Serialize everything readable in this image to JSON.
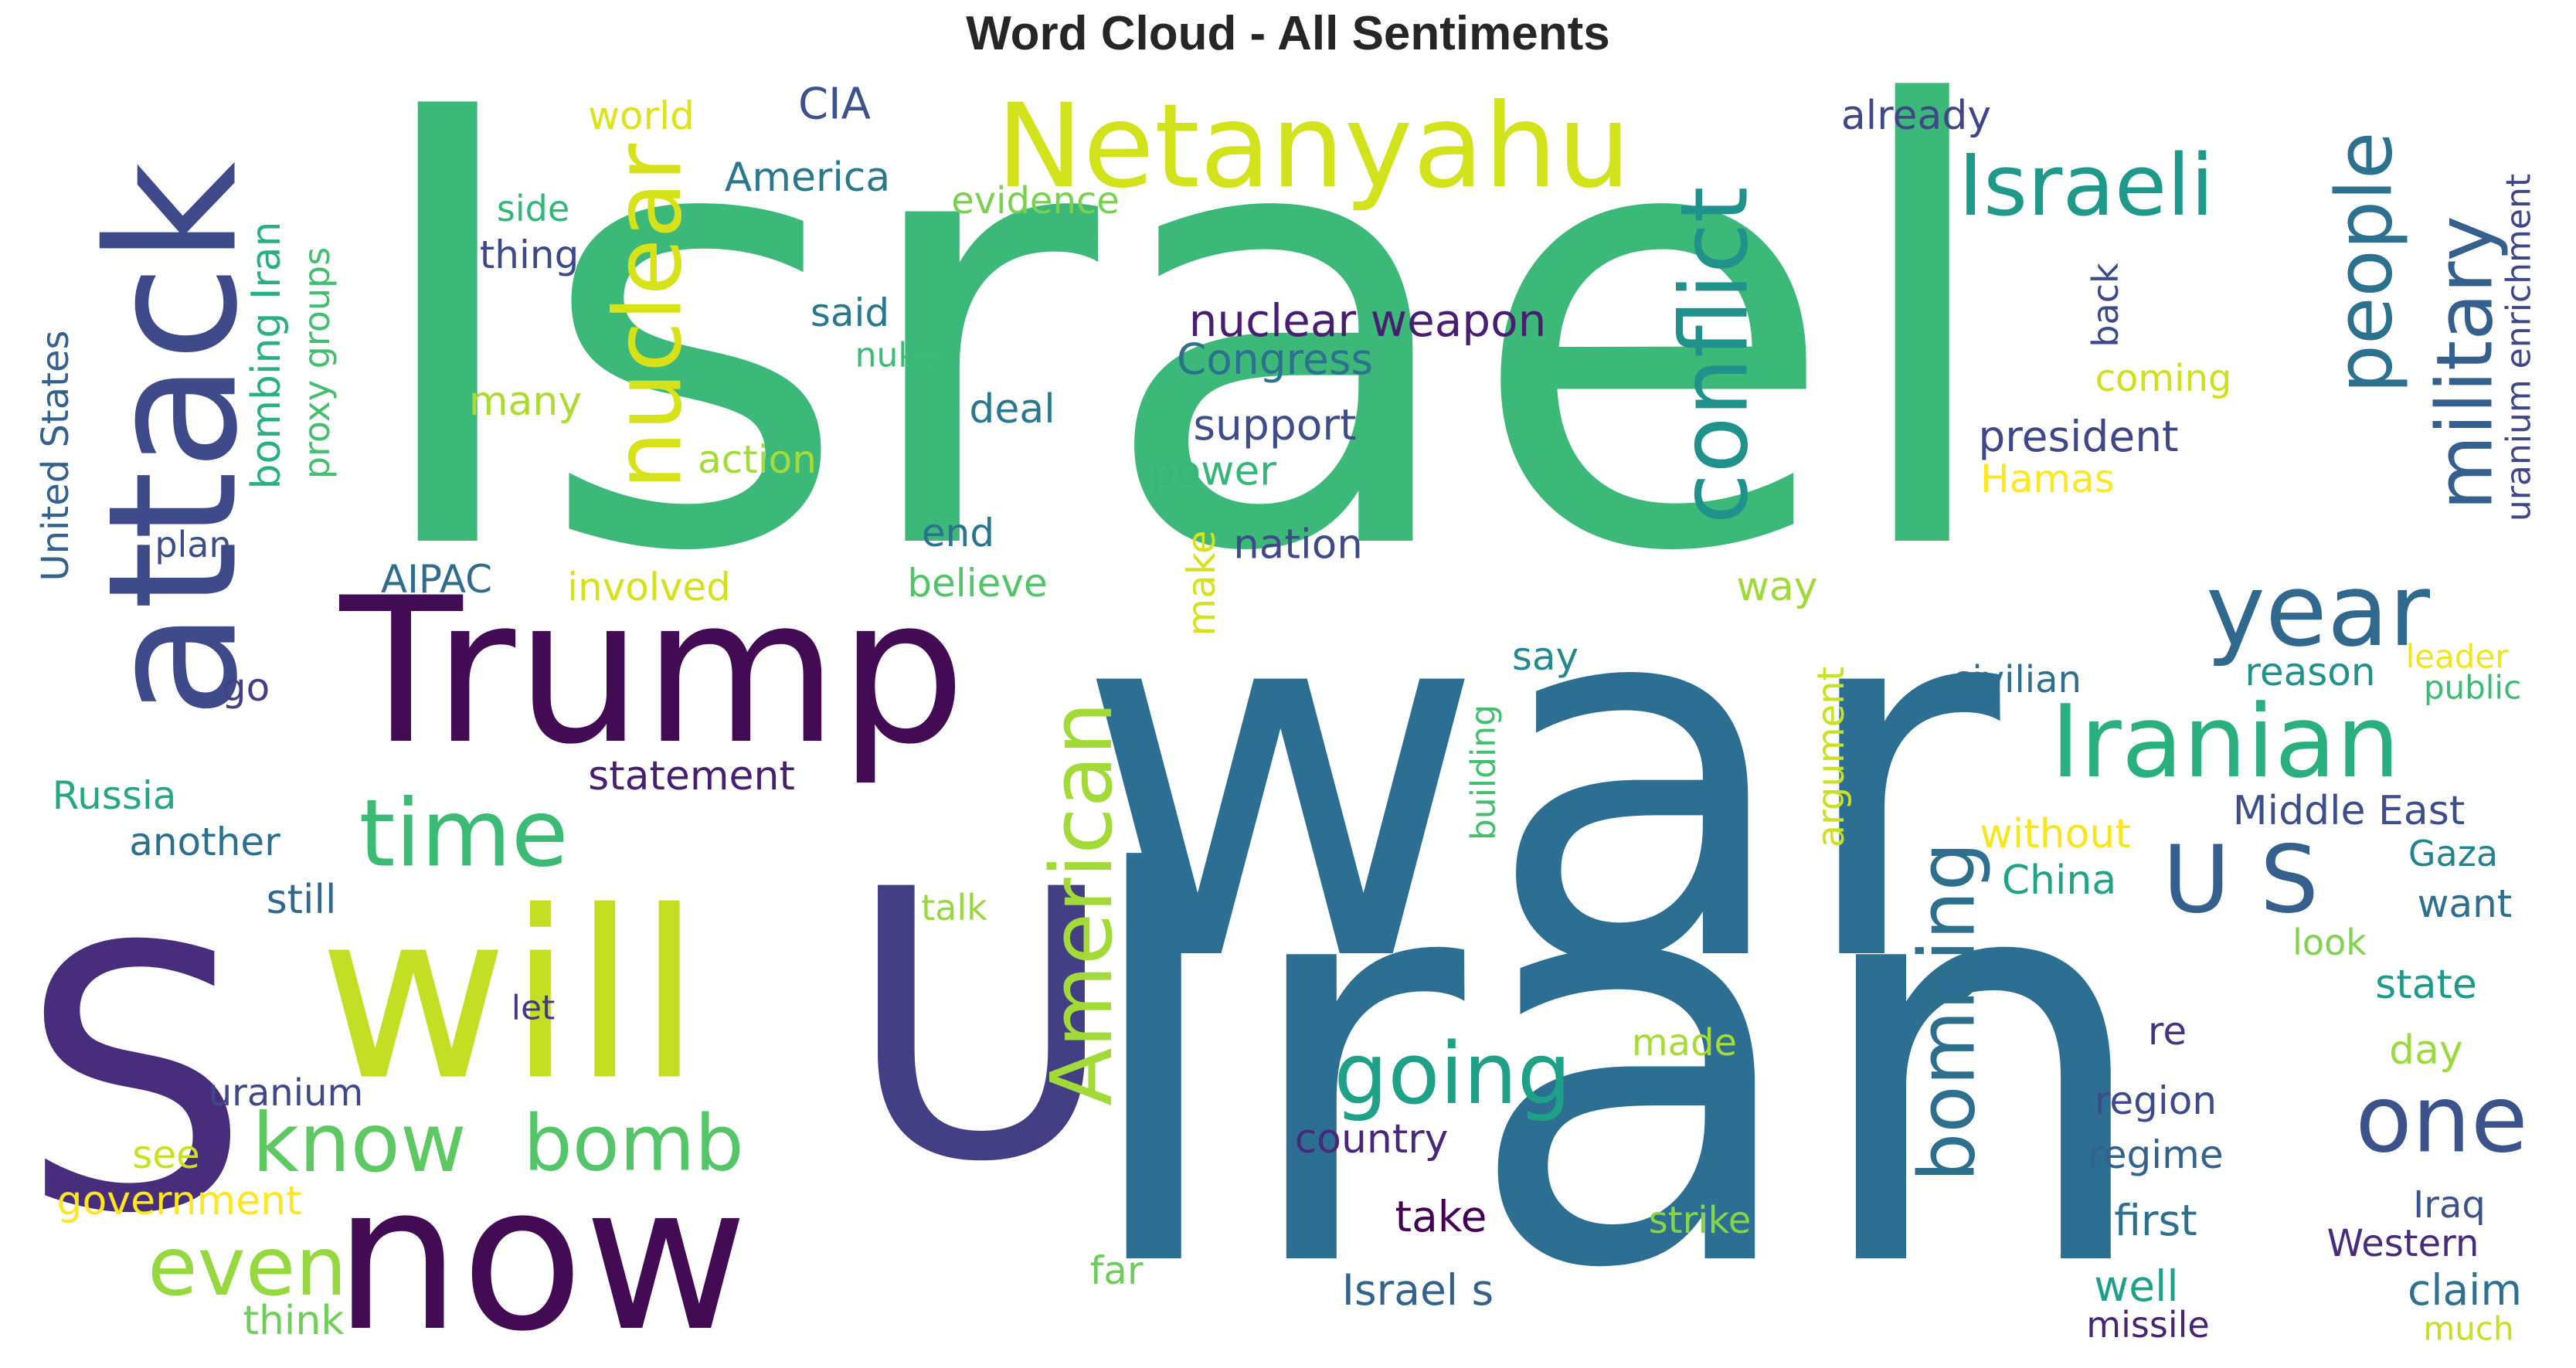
{
  "title": "Word Cloud - All Sentiments",
  "word_cloud": {
    "words": [
      {
        "text": "Israel",
        "orientation": "horizontal",
        "color": "#3cb878"
      },
      {
        "text": "war",
        "orientation": "horizontal",
        "color": "#2c6f92"
      },
      {
        "text": "Iran",
        "orientation": "horizontal",
        "color": "#2c6f92"
      },
      {
        "text": "Trump",
        "orientation": "horizontal",
        "color": "#440b55"
      },
      {
        "text": "attack",
        "orientation": "vertical",
        "color": "#3e4a89"
      },
      {
        "text": "S",
        "orientation": "horizontal",
        "color": "#472d7b"
      },
      {
        "text": "will",
        "orientation": "horizontal",
        "color": "#c2df23"
      },
      {
        "text": "U",
        "orientation": "horizontal",
        "color": "#423f85"
      },
      {
        "text": "now",
        "orientation": "horizontal",
        "color": "#440b55"
      },
      {
        "text": "Netanyahu",
        "orientation": "horizontal",
        "color": "#d2e21b"
      },
      {
        "text": "nuclear",
        "orientation": "vertical",
        "color": "#d8e219"
      },
      {
        "text": "conflict",
        "orientation": "vertical",
        "color": "#21918c"
      },
      {
        "text": "Israeli",
        "orientation": "horizontal",
        "color": "#1f998a"
      },
      {
        "text": "people",
        "orientation": "vertical",
        "color": "#2c728e"
      },
      {
        "text": "military",
        "orientation": "vertical",
        "color": "#355f8d"
      },
      {
        "text": "year",
        "orientation": "horizontal",
        "color": "#31688e"
      },
      {
        "text": "Iranian",
        "orientation": "horizontal",
        "color": "#2ab07f"
      },
      {
        "text": "U S",
        "orientation": "horizontal",
        "color": "#355f8d"
      },
      {
        "text": "American",
        "orientation": "vertical",
        "color": "#a2da37"
      },
      {
        "text": "time",
        "orientation": "horizontal",
        "color": "#3bbb75"
      },
      {
        "text": "know",
        "orientation": "horizontal",
        "color": "#5ec962"
      },
      {
        "text": "bomb",
        "orientation": "horizontal",
        "color": "#54c568"
      },
      {
        "text": "even",
        "orientation": "horizontal",
        "color": "#95d840"
      },
      {
        "text": "going",
        "orientation": "horizontal",
        "color": "#1fa187"
      },
      {
        "text": "bombing",
        "orientation": "vertical",
        "color": "#2d708e"
      },
      {
        "text": "one",
        "orientation": "horizontal",
        "color": "#3b528b"
      },
      {
        "text": "nuclear weapon",
        "orientation": "horizontal",
        "color": "#481f70"
      },
      {
        "text": "Congress",
        "orientation": "horizontal",
        "color": "#2c728e"
      },
      {
        "text": "support",
        "orientation": "horizontal",
        "color": "#3e4c8a"
      },
      {
        "text": "power",
        "orientation": "horizontal",
        "color": "#35b779"
      },
      {
        "text": "nation",
        "orientation": "horizontal",
        "color": "#3e4a89"
      },
      {
        "text": "president",
        "orientation": "horizontal",
        "color": "#3f4788"
      },
      {
        "text": "Hamas",
        "orientation": "horizontal",
        "color": "#fde725"
      },
      {
        "text": "already",
        "orientation": "horizontal",
        "color": "#3f4788"
      },
      {
        "text": "CIA",
        "orientation": "horizontal",
        "color": "#3b528b"
      },
      {
        "text": "world",
        "orientation": "horizontal",
        "color": "#dde318"
      },
      {
        "text": "America",
        "orientation": "horizontal",
        "color": "#2a788e"
      },
      {
        "text": "evidence",
        "orientation": "horizontal",
        "color": "#7ad151"
      },
      {
        "text": "side",
        "orientation": "horizontal",
        "color": "#32b67a"
      },
      {
        "text": "thing",
        "orientation": "horizontal",
        "color": "#3e4989"
      },
      {
        "text": "said",
        "orientation": "horizontal",
        "color": "#2a788e"
      },
      {
        "text": "nuke",
        "orientation": "horizontal",
        "color": "#3bbb75"
      },
      {
        "text": "many",
        "orientation": "horizontal",
        "color": "#addc30"
      },
      {
        "text": "deal",
        "orientation": "horizontal",
        "color": "#2a788e"
      },
      {
        "text": "action",
        "orientation": "horizontal",
        "color": "#a5db36"
      },
      {
        "text": "end",
        "orientation": "horizontal",
        "color": "#2b748e"
      },
      {
        "text": "believe",
        "orientation": "horizontal",
        "color": "#52c569"
      },
      {
        "text": "involved",
        "orientation": "horizontal",
        "color": "#d5e21a"
      },
      {
        "text": "AIPAC",
        "orientation": "horizontal",
        "color": "#2f6c8e"
      },
      {
        "text": "plan",
        "orientation": "horizontal",
        "color": "#3d4d8a"
      },
      {
        "text": "bombing Iran",
        "orientation": "vertical",
        "color": "#2ab07f"
      },
      {
        "text": "proxy groups",
        "orientation": "vertical",
        "color": "#44bf70"
      },
      {
        "text": "United States",
        "orientation": "vertical",
        "color": "#34618d"
      },
      {
        "text": "go",
        "orientation": "horizontal",
        "color": "#433e85"
      },
      {
        "text": "statement",
        "orientation": "horizontal",
        "color": "#481f70"
      },
      {
        "text": "Russia",
        "orientation": "horizontal",
        "color": "#26a784"
      },
      {
        "text": "another",
        "orientation": "horizontal",
        "color": "#2d708e"
      },
      {
        "text": "still",
        "orientation": "horizontal",
        "color": "#31688e"
      },
      {
        "text": "uranium",
        "orientation": "horizontal",
        "color": "#3f4889"
      },
      {
        "text": "see",
        "orientation": "horizontal",
        "color": "#cae11f"
      },
      {
        "text": "government",
        "orientation": "horizontal",
        "color": "#fde725"
      },
      {
        "text": "think",
        "orientation": "horizontal",
        "color": "#6ece58"
      },
      {
        "text": "let",
        "orientation": "horizontal",
        "color": "#443983"
      },
      {
        "text": "talk",
        "orientation": "horizontal",
        "color": "#98d83e"
      },
      {
        "text": "make",
        "orientation": "vertical",
        "color": "#d8e219"
      },
      {
        "text": "country",
        "orientation": "horizontal",
        "color": "#482878"
      },
      {
        "text": "take",
        "orientation": "horizontal",
        "color": "#440154"
      },
      {
        "text": "Israel s",
        "orientation": "horizontal",
        "color": "#33638d"
      },
      {
        "text": "far",
        "orientation": "horizontal",
        "color": "#6ccd5a"
      },
      {
        "text": "made",
        "orientation": "horizontal",
        "color": "#a8db34"
      },
      {
        "text": "strike",
        "orientation": "horizontal",
        "color": "#86d549"
      },
      {
        "text": "say",
        "orientation": "horizontal",
        "color": "#23898e"
      },
      {
        "text": "building",
        "orientation": "vertical",
        "color": "#44bf70"
      },
      {
        "text": "argument",
        "orientation": "vertical",
        "color": "#cae11f"
      },
      {
        "text": "way",
        "orientation": "horizontal",
        "color": "#a0da39"
      },
      {
        "text": "civilian",
        "orientation": "horizontal",
        "color": "#2e6e8e"
      },
      {
        "text": "reason",
        "orientation": "horizontal",
        "color": "#20928c"
      },
      {
        "text": "without",
        "orientation": "horizontal",
        "color": "#f6e620"
      },
      {
        "text": "China",
        "orientation": "horizontal",
        "color": "#20a386"
      },
      {
        "text": "Middle East",
        "orientation": "horizontal",
        "color": "#3d4e8a"
      },
      {
        "text": "want",
        "orientation": "horizontal",
        "color": "#2e6e8e"
      },
      {
        "text": "state",
        "orientation": "horizontal",
        "color": "#1f9a8a"
      },
      {
        "text": "re",
        "orientation": "horizontal",
        "color": "#463480"
      },
      {
        "text": "region",
        "orientation": "horizontal",
        "color": "#3e4a89"
      },
      {
        "text": "regime",
        "orientation": "horizontal",
        "color": "#33628d"
      },
      {
        "text": "first",
        "orientation": "horizontal",
        "color": "#2d708e"
      },
      {
        "text": "well",
        "orientation": "horizontal",
        "color": "#1fa088"
      },
      {
        "text": "missile",
        "orientation": "horizontal",
        "color": "#482475"
      },
      {
        "text": "back",
        "orientation": "vertical",
        "color": "#3e4989"
      },
      {
        "text": "coming",
        "orientation": "horizontal",
        "color": "#d0e11c"
      },
      {
        "text": "leader",
        "orientation": "horizontal",
        "color": "#f1e51d"
      },
      {
        "text": "public",
        "orientation": "horizontal",
        "color": "#3bbb75"
      },
      {
        "text": "Gaza",
        "orientation": "horizontal",
        "color": "#25838e"
      },
      {
        "text": "look",
        "orientation": "horizontal",
        "color": "#7fd34e"
      },
      {
        "text": "day",
        "orientation": "horizontal",
        "color": "#9bd93c"
      },
      {
        "text": "Iraq",
        "orientation": "horizontal",
        "color": "#3b528b"
      },
      {
        "text": "Western",
        "orientation": "horizontal",
        "color": "#472c7a"
      },
      {
        "text": "claim",
        "orientation": "horizontal",
        "color": "#2d718e"
      },
      {
        "text": "much",
        "orientation": "horizontal",
        "color": "#c5e021"
      },
      {
        "text": "uranium enrichment",
        "orientation": "vertical",
        "color": "#3f4788"
      }
    ]
  }
}
